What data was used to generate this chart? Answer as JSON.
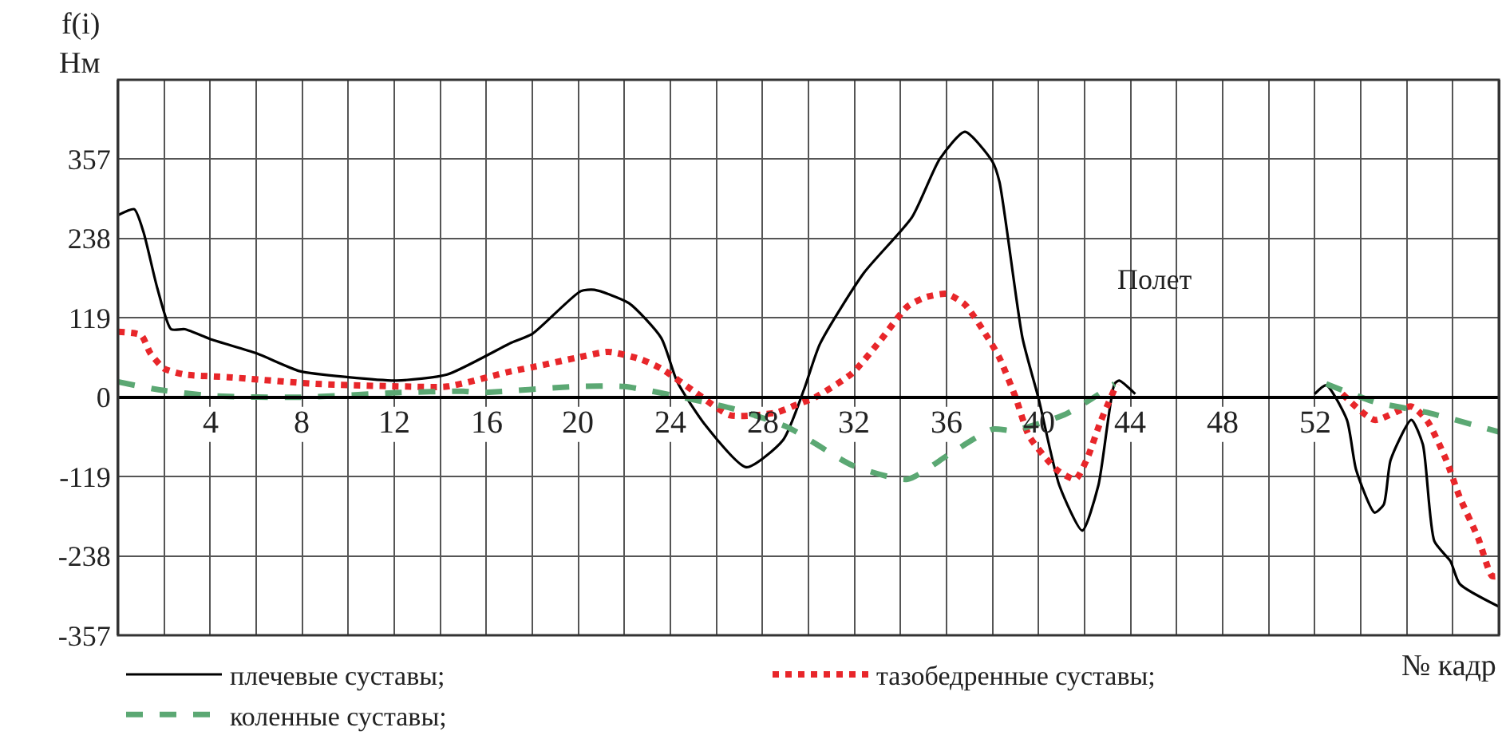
{
  "chart_data": {
    "type": "line",
    "ylabel": "f(i)\nНм",
    "xlabel": "№ кадр",
    "annotations": [
      "Полет"
    ],
    "xlim": [
      0,
      60
    ],
    "xticks": [
      {
        "value": 0,
        "label": null
      },
      {
        "value": 2,
        "label": null
      },
      4,
      {
        "value": 6,
        "label": null
      },
      8,
      {
        "value": 10,
        "label": null
      },
      12,
      {
        "value": 14,
        "label": null
      },
      16,
      {
        "value": 18,
        "label": null
      },
      20,
      {
        "value": 22,
        "label": null
      },
      24,
      {
        "value": 26,
        "label": null
      },
      28,
      {
        "value": 30,
        "label": null
      },
      32,
      {
        "value": 34,
        "label": null
      },
      36,
      {
        "value": 38,
        "label": null
      },
      40,
      {
        "value": 42,
        "label": null
      },
      44,
      {
        "value": 46,
        "label": null
      },
      48,
      {
        "value": 50,
        "label": null
      },
      52,
      {
        "value": 54,
        "label": null
      },
      {
        "value": 56,
        "label": null
      },
      {
        "value": 58,
        "label": null
      }
    ],
    "ylim": [
      -357,
      476
    ],
    "yticks": [
      -357,
      -238,
      -119,
      0,
      119,
      238,
      357
    ],
    "grid": true,
    "legend": "bottom",
    "marker": "none",
    "series": [
      {
        "name": "плечевые суставы;",
        "color": "#000000",
        "line_style": "solid",
        "x": [
          0,
          0.7,
          1.1,
          1.7,
          2.3,
          2.9,
          4.1,
          6,
          7.9,
          10,
          12.1,
          14.3,
          17.1,
          18,
          20.1,
          20.7,
          22.2,
          23.6,
          24.3,
          25.5,
          27.3,
          28.9,
          29.8,
          30.5,
          32.4,
          34.5,
          35.7,
          36.8,
          38,
          38.3,
          39.3,
          40,
          40.9,
          41.9,
          42.6,
          43.3,
          43.5,
          44.2,
          48,
          52,
          52.5,
          53.4,
          53.8,
          54.6,
          55,
          55.3,
          56.2,
          56.7,
          57.2,
          57.9,
          58.3,
          60
        ],
        "values": [
          273,
          282,
          248,
          164,
          102,
          102,
          86,
          66,
          39,
          30,
          25,
          34,
          82,
          95,
          159,
          161,
          141,
          89,
          23,
          -41,
          -105,
          -64,
          11,
          80,
          186,
          270,
          357,
          398,
          353,
          323,
          89,
          -2,
          -132,
          -200,
          -132,
          20,
          25,
          5,
          null,
          5,
          18,
          -34,
          -109,
          -173,
          -161,
          -94,
          -34,
          -71,
          -216,
          -246,
          -280,
          -314
        ]
      },
      {
        "name": "тазобедренные суставы;",
        "color": "#e8262a",
        "line_style": "dotted",
        "x": [
          0,
          1,
          1.4,
          2,
          2.9,
          4.8,
          8.6,
          12.5,
          14.3,
          17.1,
          18,
          19.9,
          21.3,
          22.7,
          23.6,
          25.1,
          26.6,
          28.6,
          29.5,
          30.3,
          31.9,
          33.1,
          34.3,
          35.1,
          36,
          36.8,
          37.8,
          38.3,
          39,
          39.6,
          40.8,
          41.6,
          42.1,
          42.7,
          43.4,
          48,
          53.2,
          54.6,
          56.2,
          56.9,
          57.7,
          58.3,
          59.1,
          59.7,
          60
        ],
        "values": [
          98,
          93,
          66,
          43,
          34,
          30,
          20,
          16,
          16,
          39,
          45,
          59,
          68,
          57,
          43,
          7,
          -27,
          -23,
          -11,
          0,
          36,
          84,
          136,
          150,
          155,
          139,
          89,
          59,
          0,
          -59,
          -109,
          -123,
          -93,
          -36,
          20,
          null,
          5,
          -34,
          -14,
          -36,
          -93,
          -150,
          -211,
          -268,
          -268
        ]
      },
      {
        "name": "коленные суставы;",
        "color": "#5ba873",
        "line_style": "dashed",
        "x": [
          0,
          1.8,
          4.1,
          7.9,
          12.3,
          15,
          15.7,
          19.9,
          22,
          24.5,
          26.8,
          29.1,
          31.9,
          34.3,
          36.1,
          38,
          38.9,
          41.2,
          43.3,
          48,
          52.5,
          54.6,
          56.9,
          60
        ],
        "values": [
          23,
          11,
          2,
          0,
          7,
          9,
          7,
          16,
          16,
          0,
          -18,
          -45,
          -102,
          -123,
          -86,
          -48,
          -50,
          -25,
          20,
          null,
          20,
          -7,
          -23,
          -52
        ]
      }
    ]
  }
}
